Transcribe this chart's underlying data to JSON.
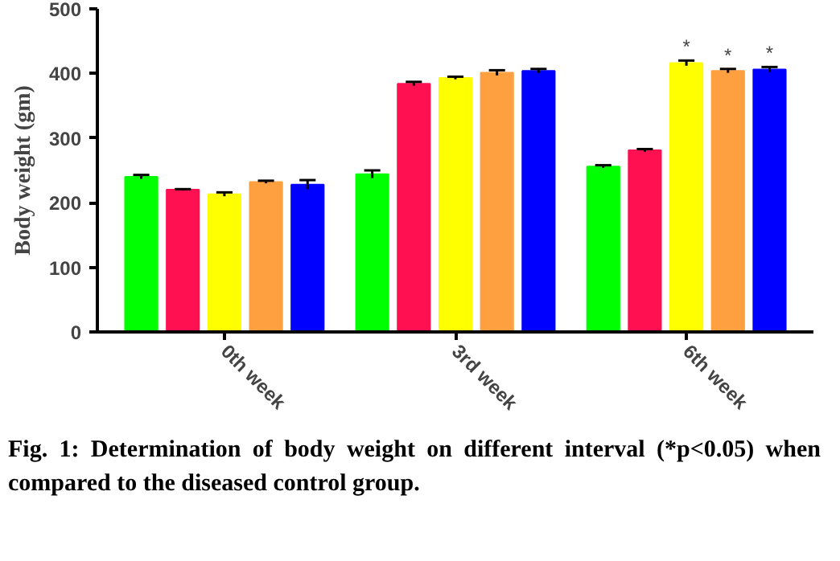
{
  "chart_data": {
    "type": "bar",
    "ylabel": "Body weight (gm)",
    "categories": [
      "0th week",
      "3rd week",
      "6th week"
    ],
    "series": [
      {
        "color": "#00ff00",
        "values": [
          240,
          244,
          256
        ],
        "errors": [
          3,
          6,
          2
        ]
      },
      {
        "color": "#ff1050",
        "values": [
          220,
          384,
          281
        ],
        "errors": [
          1,
          3,
          2
        ]
      },
      {
        "color": "#ffff00",
        "values": [
          213,
          393,
          416
        ],
        "errors": [
          3,
          2,
          4
        ],
        "value_labels": [
          null,
          null,
          "*"
        ]
      },
      {
        "color": "#ffa040",
        "values": [
          232,
          401,
          404
        ],
        "errors": [
          2,
          4,
          3
        ],
        "value_labels": [
          null,
          null,
          "*"
        ]
      },
      {
        "color": "#0000ff",
        "values": [
          228,
          404,
          406
        ],
        "errors": [
          7,
          3,
          4
        ],
        "value_labels": [
          null,
          null,
          "*"
        ]
      }
    ],
    "ylim": [
      0,
      500
    ],
    "yticks": [
      0,
      100,
      200,
      300,
      400,
      500
    ],
    "grid": false,
    "annotations": [
      "Fig. 1: Determination of body weight on different interval (*p<0.05) when compared to the diseased control group."
    ]
  }
}
